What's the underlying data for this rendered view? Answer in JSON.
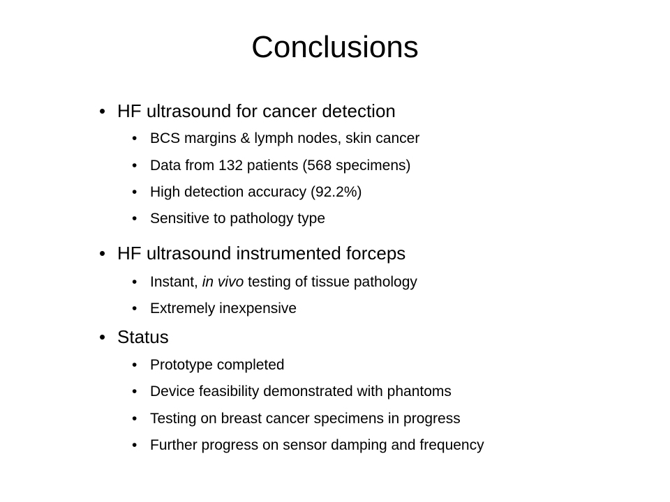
{
  "slide": {
    "title": "Conclusions",
    "bullet_glyph": "•",
    "sections": [
      {
        "heading": "HF ultrasound for cancer detection",
        "items": [
          "BCS margins & lymph nodes, skin cancer",
          "Data from 132 patients (568 specimens)",
          "High detection accuracy (92.2%)",
          "Sensitive to pathology type"
        ]
      },
      {
        "heading": "HF ultrasound instrumented forceps",
        "items": [
          {
            "before": "Instant, ",
            "em": "in vivo",
            "after": " testing of tissue pathology"
          },
          "Extremely inexpensive"
        ]
      },
      {
        "heading": "Status",
        "items": [
          "Prototype completed",
          "Device feasibility demonstrated with phantoms",
          "Testing on breast cancer specimens in progress",
          "Further progress on sensor damping and frequency"
        ]
      }
    ]
  }
}
